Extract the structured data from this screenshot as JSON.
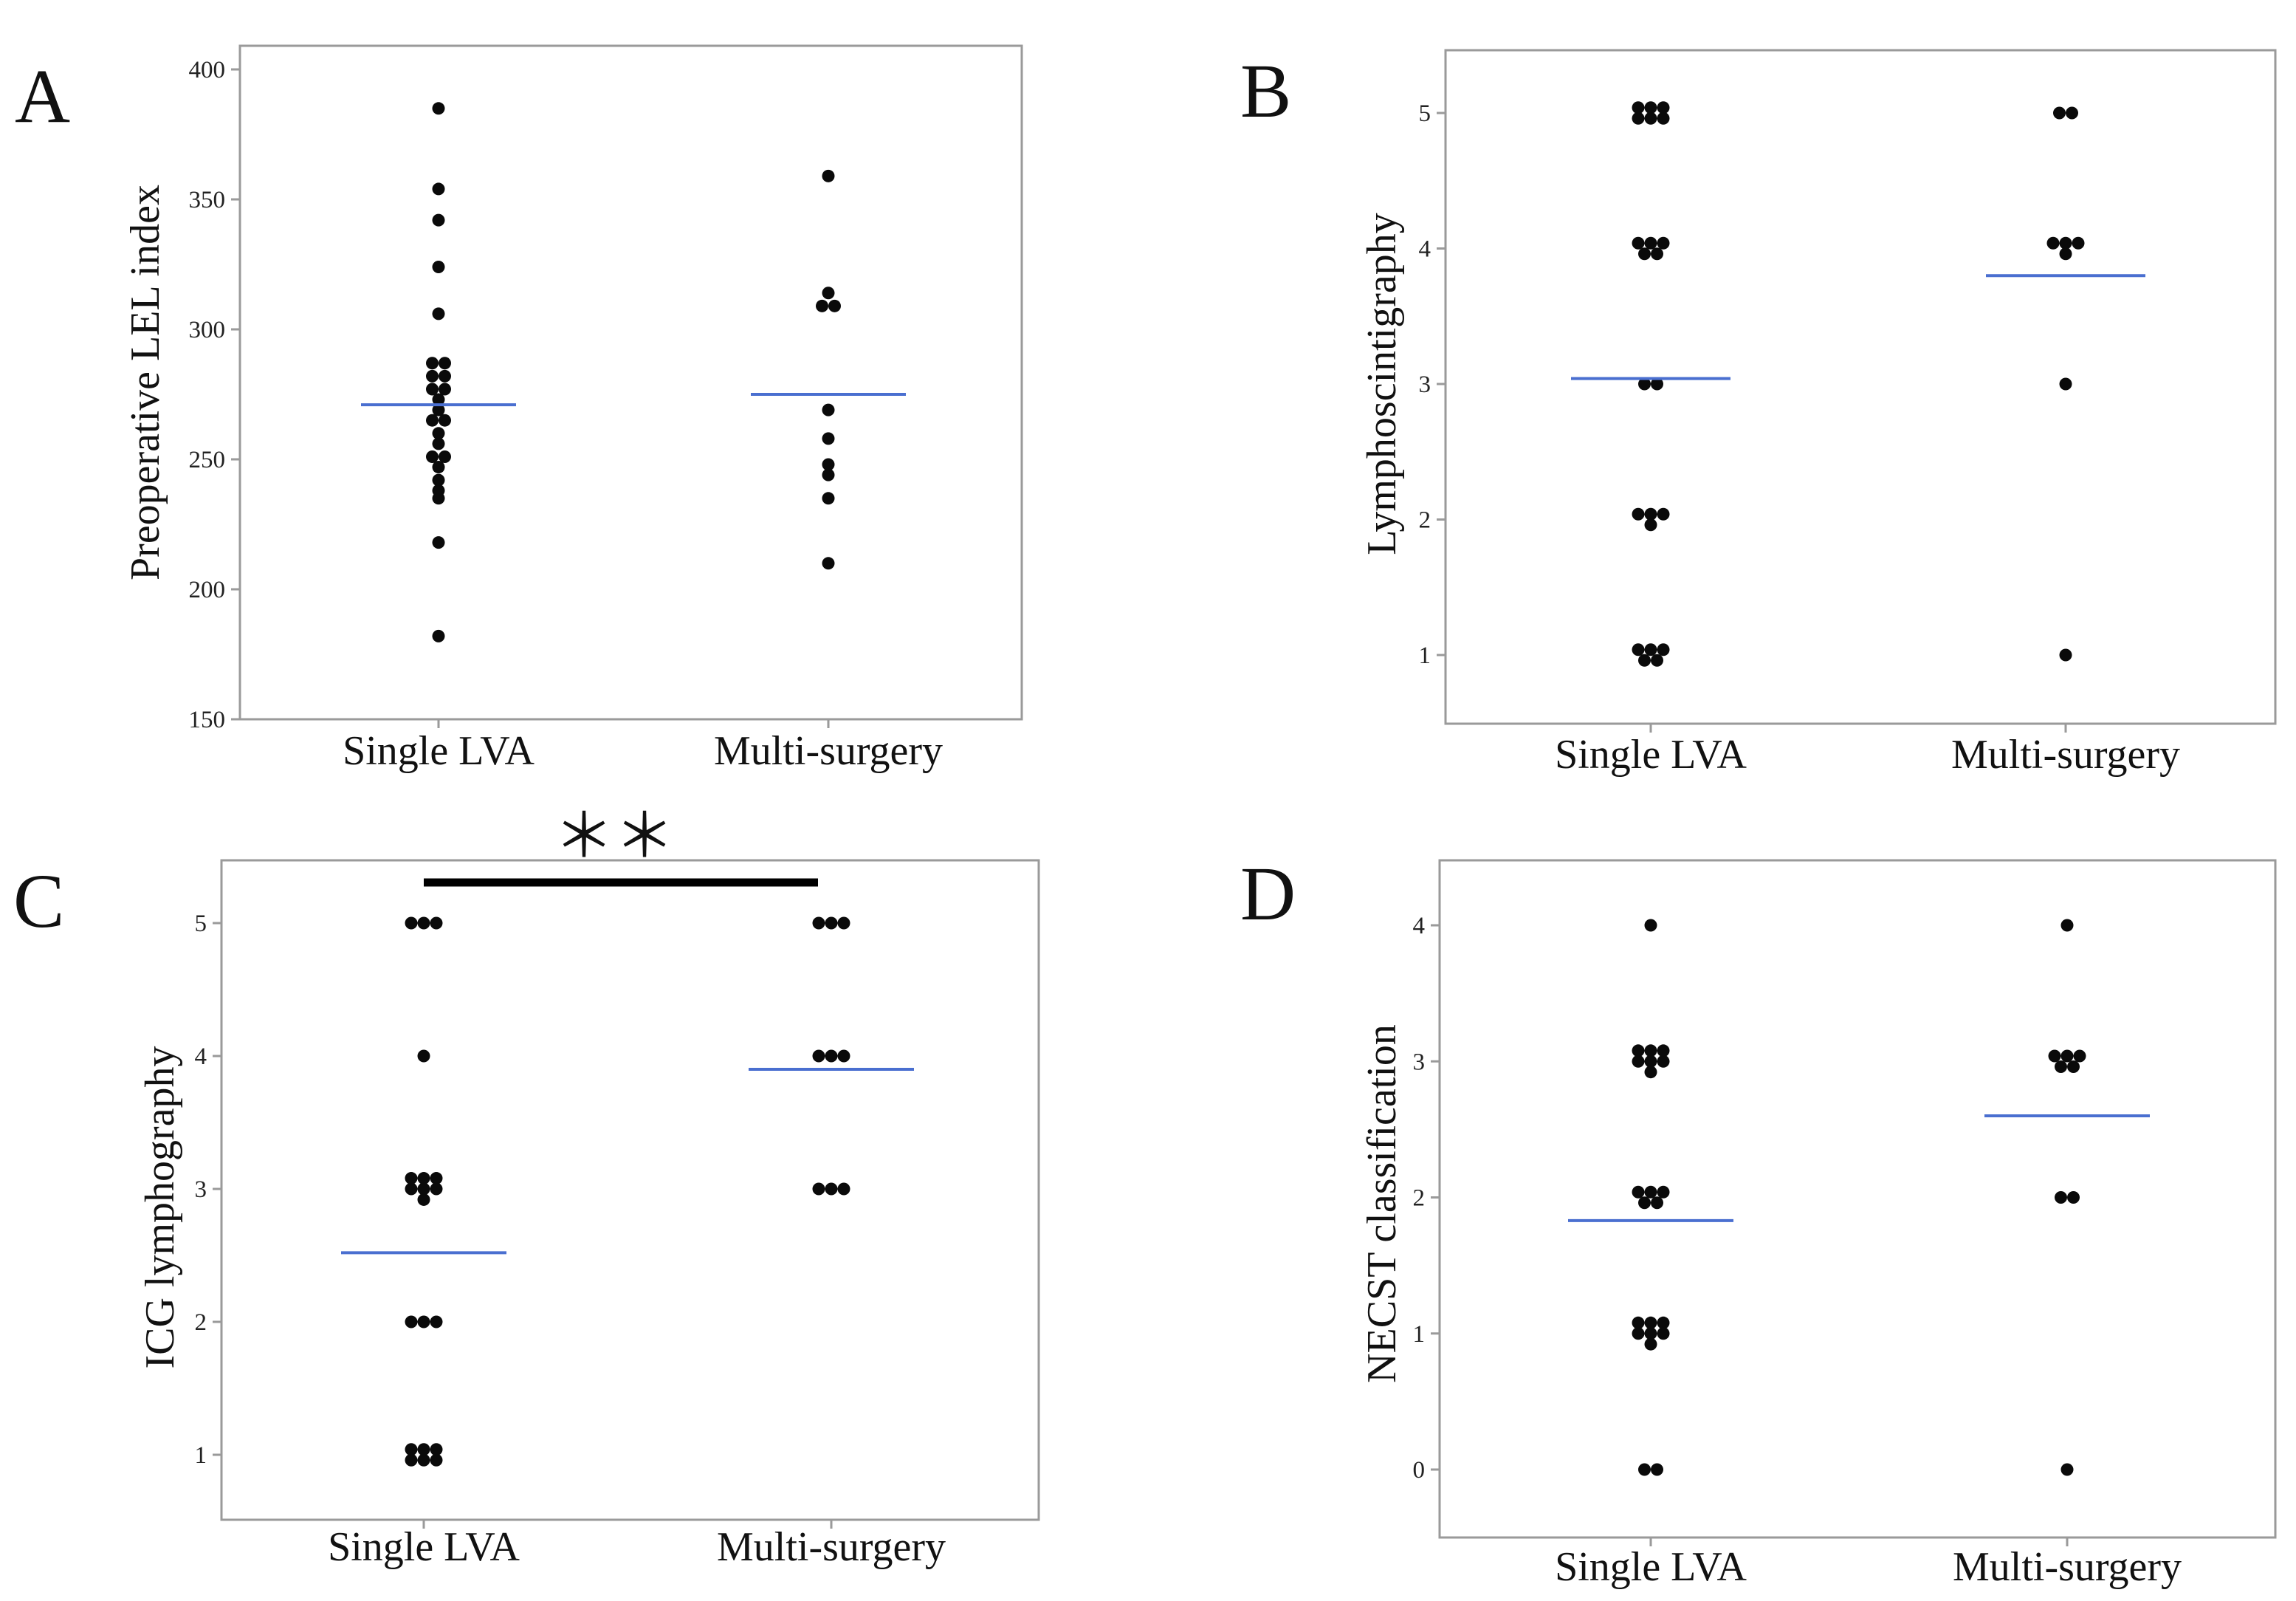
{
  "colors": {
    "mean_line": "#4a6fd0",
    "dots": "#0a0a0a",
    "frame": "#9a9a9a"
  },
  "chart_data": [
    {
      "panel": "A",
      "type": "scatter",
      "title": "",
      "xlabel": "",
      "ylabel": "Preoperative LEL index",
      "categories": [
        "Single LVA",
        "Multi-surgery"
      ],
      "ylim": [
        150,
        400
      ],
      "yticks": [
        150,
        200,
        250,
        300,
        350,
        400
      ],
      "series": [
        {
          "name": "Single LVA",
          "mean": 271,
          "points": [
            385,
            354,
            342,
            324,
            306,
            287,
            287,
            282,
            282,
            277,
            277,
            273,
            269,
            265,
            265,
            260,
            256,
            251,
            251,
            247,
            242,
            238,
            235,
            218,
            182
          ]
        },
        {
          "name": "Multi-surgery",
          "mean": 275,
          "points": [
            359,
            314,
            309,
            309,
            269,
            258,
            248,
            244,
            235,
            210
          ]
        }
      ]
    },
    {
      "panel": "B",
      "type": "scatter",
      "title": "",
      "xlabel": "",
      "ylabel": "Lymphoscintigraphy",
      "categories": [
        "Single LVA",
        "Multi-surgery"
      ],
      "ylim": [
        0.5,
        5.4
      ],
      "yticks": [
        1,
        2,
        3,
        4,
        5
      ],
      "series": [
        {
          "name": "Single LVA",
          "mean": 3.04,
          "points": [
            5,
            5,
            5,
            5,
            5,
            5,
            4,
            4,
            4,
            4,
            4,
            3,
            3,
            2,
            2,
            2,
            2,
            1,
            1,
            1,
            1,
            1
          ]
        },
        {
          "name": "Multi-surgery",
          "mean": 3.8,
          "points": [
            5,
            5,
            4,
            4,
            4,
            4,
            3,
            1
          ]
        }
      ]
    },
    {
      "panel": "C",
      "type": "scatter",
      "title": "",
      "xlabel": "",
      "ylabel": "ICG lymphography",
      "categories": [
        "Single LVA",
        "Multi-surgery"
      ],
      "ylim": [
        0.5,
        5.5
      ],
      "yticks": [
        1,
        2,
        3,
        4,
        5
      ],
      "significance": "＊＊",
      "series": [
        {
          "name": "Single LVA",
          "mean": 2.52,
          "points": [
            5,
            5,
            5,
            4,
            3,
            3,
            3,
            3,
            3,
            3,
            3,
            2,
            2,
            2,
            1,
            1,
            1,
            1,
            1,
            1
          ]
        },
        {
          "name": "Multi-surgery",
          "mean": 3.9,
          "points": [
            5,
            5,
            5,
            4,
            4,
            4,
            3,
            3,
            3
          ]
        }
      ]
    },
    {
      "panel": "D",
      "type": "scatter",
      "title": "",
      "xlabel": "",
      "ylabel": "NECST classification",
      "categories": [
        "Single LVA",
        "Multi-surgery"
      ],
      "ylim": [
        -0.5,
        4.5
      ],
      "yticks": [
        0,
        1,
        2,
        3,
        4
      ],
      "series": [
        {
          "name": "Single LVA",
          "mean": 1.83,
          "points": [
            4,
            3,
            3,
            3,
            3,
            3,
            3,
            3,
            2,
            2,
            2,
            2,
            2,
            1,
            1,
            1,
            1,
            1,
            1,
            1,
            0,
            0
          ]
        },
        {
          "name": "Multi-surgery",
          "mean": 2.6,
          "points": [
            4,
            3,
            3,
            3,
            3,
            3,
            2,
            2,
            0
          ]
        }
      ]
    }
  ]
}
